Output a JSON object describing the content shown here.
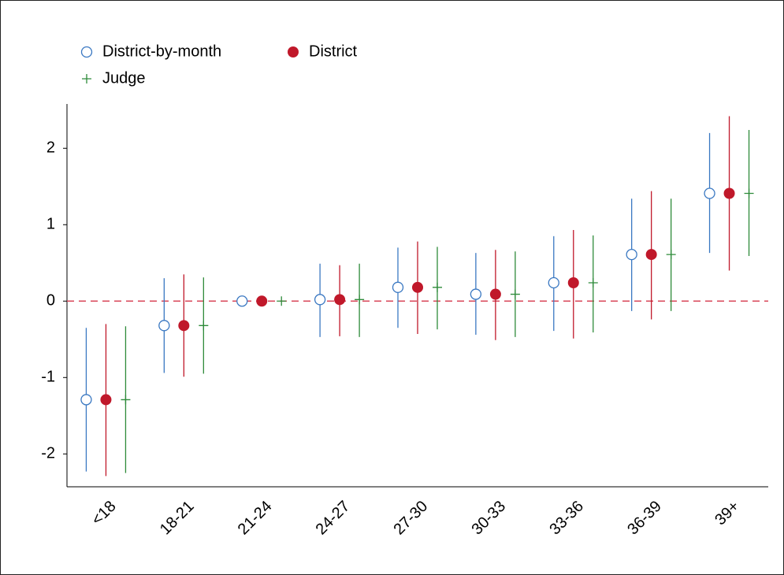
{
  "chart_data": {
    "type": "errorbar",
    "categories": [
      "<18",
      "18-21",
      "21-24",
      "24-27",
      "27-30",
      "30-33",
      "33-36",
      "36-39",
      "39+"
    ],
    "series": [
      {
        "name": "District-by-month",
        "color": "#3a78c2",
        "marker": "open-circle",
        "values": [
          -1.29,
          -0.32,
          0,
          0.02,
          0.18,
          0.09,
          0.24,
          0.61,
          1.41
        ],
        "lower": [
          -2.23,
          -0.94,
          null,
          -0.47,
          -0.35,
          -0.44,
          -0.39,
          -0.13,
          0.63
        ],
        "upper": [
          -0.35,
          0.3,
          null,
          0.49,
          0.7,
          0.63,
          0.85,
          1.34,
          2.2
        ]
      },
      {
        "name": "District",
        "color": "#c0182a",
        "marker": "filled-circle",
        "values": [
          -1.29,
          -0.32,
          0,
          0.02,
          0.18,
          0.09,
          0.24,
          0.61,
          1.41
        ],
        "lower": [
          -2.29,
          -0.99,
          null,
          -0.46,
          -0.43,
          -0.51,
          -0.49,
          -0.24,
          0.4
        ],
        "upper": [
          -0.3,
          0.35,
          null,
          0.47,
          0.78,
          0.67,
          0.93,
          1.44,
          2.42
        ]
      },
      {
        "name": "Judge",
        "color": "#2e8b3a",
        "marker": "plus",
        "values": [
          -1.29,
          -0.32,
          0,
          0.02,
          0.18,
          0.09,
          0.24,
          0.61,
          1.41
        ],
        "lower": [
          -2.25,
          -0.95,
          null,
          -0.47,
          -0.37,
          -0.47,
          -0.41,
          -0.13,
          0.59
        ],
        "upper": [
          -0.33,
          0.31,
          null,
          0.49,
          0.71,
          0.65,
          0.86,
          1.34,
          2.24
        ]
      }
    ],
    "ylim": [
      -2.43,
      2.58
    ],
    "yticks": [
      -2,
      -1,
      0,
      1,
      2
    ],
    "reference_line": 0,
    "reference_color": "#d9475a"
  }
}
